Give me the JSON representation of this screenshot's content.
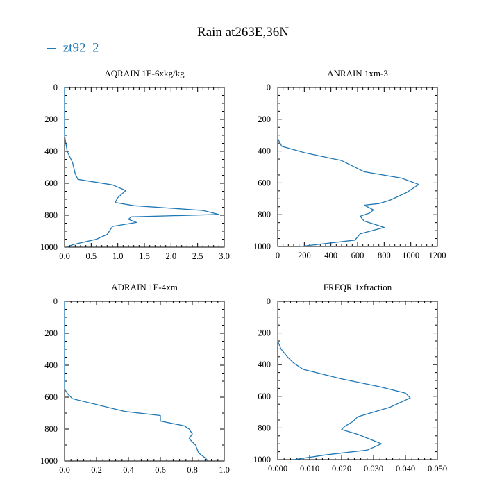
{
  "title": "Rain at263E,36N",
  "legend": {
    "label": "zt92_2",
    "color": "#1f77b4"
  },
  "chart_data": [
    {
      "type": "line",
      "title": "AQRAIN  1E-6xkg/kg",
      "xlim": [
        0,
        3.0
      ],
      "ylim": [
        1000,
        0
      ],
      "xticks": [
        "0.0",
        "0.5",
        "1.0",
        "1.5",
        "2.0",
        "2.5",
        "3.0"
      ],
      "yticks": [
        "0",
        "200",
        "400",
        "600",
        "800",
        "1000"
      ],
      "series": [
        {
          "name": "zt92_2",
          "points": [
            [
              0,
              0
            ],
            [
              0,
              300
            ],
            [
              0.05,
              400
            ],
            [
              0.15,
              470
            ],
            [
              0.2,
              540
            ],
            [
              0.25,
              575
            ],
            [
              0.9,
              610
            ],
            [
              1.15,
              645
            ],
            [
              1.0,
              690
            ],
            [
              0.95,
              720
            ],
            [
              1.3,
              740
            ],
            [
              2.6,
              770
            ],
            [
              2.9,
              795
            ],
            [
              1.25,
              810
            ],
            [
              1.2,
              825
            ],
            [
              1.35,
              845
            ],
            [
              0.9,
              870
            ],
            [
              0.8,
              920
            ],
            [
              0.6,
              950
            ],
            [
              0.15,
              985
            ],
            [
              0.05,
              1000
            ]
          ]
        }
      ]
    },
    {
      "type": "line",
      "title": "ANRAIN  1xm-3",
      "xlim": [
        0,
        1200
      ],
      "ylim": [
        1000,
        0
      ],
      "xticks": [
        "0",
        "200",
        "400",
        "600",
        "800",
        "1000",
        "1200"
      ],
      "yticks": [
        "0",
        "200",
        "400",
        "600",
        "800",
        "1000"
      ],
      "series": [
        {
          "name": "zt92_2",
          "points": [
            [
              0,
              0
            ],
            [
              0,
              320
            ],
            [
              30,
              370
            ],
            [
              200,
              410
            ],
            [
              480,
              460
            ],
            [
              650,
              530
            ],
            [
              930,
              570
            ],
            [
              1060,
              610
            ],
            [
              970,
              660
            ],
            [
              840,
              710
            ],
            [
              760,
              730
            ],
            [
              650,
              740
            ],
            [
              720,
              770
            ],
            [
              690,
              790
            ],
            [
              620,
              810
            ],
            [
              650,
              840
            ],
            [
              800,
              880
            ],
            [
              620,
              920
            ],
            [
              580,
              960
            ],
            [
              320,
              985
            ],
            [
              170,
              1000
            ]
          ]
        }
      ]
    },
    {
      "type": "line",
      "title": "ADRAIN  1E-4xm",
      "xlim": [
        0,
        1.0
      ],
      "ylim": [
        1000,
        0
      ],
      "xticks": [
        "0.0",
        "0.2",
        "0.4",
        "0.6",
        "0.8",
        "1.0"
      ],
      "yticks": [
        "0",
        "200",
        "400",
        "600",
        "800",
        "1000"
      ],
      "series": [
        {
          "name": "zt92_2",
          "points": [
            [
              0,
              0
            ],
            [
              0,
              550
            ],
            [
              0.02,
              580
            ],
            [
              0.05,
              610
            ],
            [
              0.38,
              690
            ],
            [
              0.6,
              715
            ],
            [
              0.6,
              750
            ],
            [
              0.75,
              780
            ],
            [
              0.78,
              800
            ],
            [
              0.8,
              830
            ],
            [
              0.78,
              860
            ],
            [
              0.82,
              900
            ],
            [
              0.84,
              950
            ],
            [
              0.88,
              980
            ],
            [
              0.9,
              1000
            ]
          ]
        }
      ]
    },
    {
      "type": "line",
      "title": "FREQR  1xfraction",
      "xlim": [
        0,
        0.05
      ],
      "ylim": [
        1000,
        0
      ],
      "xticks": [
        "0.000",
        "0.010",
        "0.020",
        "0.030",
        "0.040",
        "0.050"
      ],
      "yticks": [
        "0",
        "200",
        "400",
        "600",
        "800",
        "1000"
      ],
      "series": [
        {
          "name": "zt92_2",
          "points": [
            [
              0,
              0
            ],
            [
              0,
              250
            ],
            [
              0.001,
              300
            ],
            [
              0.003,
              350
            ],
            [
              0.005,
              390
            ],
            [
              0.008,
              430
            ],
            [
              0.02,
              490
            ],
            [
              0.032,
              540
            ],
            [
              0.04,
              580
            ],
            [
              0.0415,
              610
            ],
            [
              0.035,
              670
            ],
            [
              0.025,
              730
            ],
            [
              0.0235,
              760
            ],
            [
              0.021,
              790
            ],
            [
              0.02,
              810
            ],
            [
              0.025,
              840
            ],
            [
              0.03,
              880
            ],
            [
              0.0325,
              900
            ],
            [
              0.028,
              940
            ],
            [
              0.015,
              970
            ],
            [
              0.005,
              1000
            ]
          ]
        }
      ]
    }
  ]
}
